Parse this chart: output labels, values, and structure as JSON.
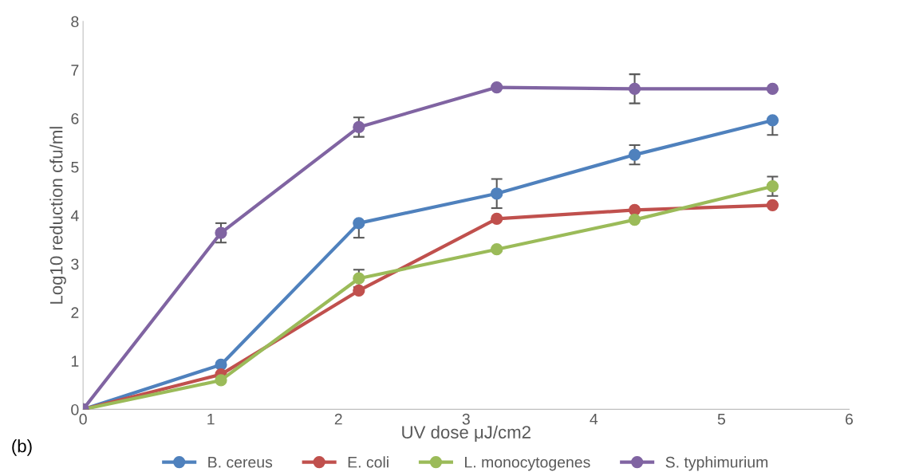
{
  "chart_data": {
    "type": "line",
    "xlabel": "UV dose μJ/cm2",
    "ylabel": "Log10 reduction cfu/ml",
    "x": [
      0,
      1.08,
      2.16,
      3.24,
      4.32,
      5.4
    ],
    "series": [
      {
        "name": "B. cereus",
        "color": "#4f81bd",
        "values": [
          0,
          0.92,
          3.84,
          4.45,
          5.25,
          5.96
        ],
        "errors": [
          null,
          null,
          [
            3.54,
            3.84
          ],
          [
            4.15,
            4.75
          ],
          0.2,
          [
            5.66,
            5.96
          ]
        ]
      },
      {
        "name": "E. coli",
        "color": "#c0504d",
        "values": [
          0,
          0.72,
          2.45,
          3.93,
          4.11,
          4.21
        ]
      },
      {
        "name": "L. monocytogenes",
        "color": "#9bbb59",
        "values": [
          0,
          0.6,
          2.7,
          3.3,
          3.91,
          4.6
        ],
        "errors": [
          null,
          null,
          0.18,
          null,
          null,
          0.2
        ]
      },
      {
        "name": "S. typhimurium",
        "color": "#8064a2",
        "values": [
          0,
          3.64,
          5.82,
          6.64,
          6.61,
          6.61
        ],
        "errors": [
          null,
          0.2,
          0.2,
          null,
          0.3,
          null
        ]
      }
    ],
    "xlim": [
      0,
      6
    ],
    "xticks": [
      0,
      1,
      2,
      3,
      4,
      5,
      6
    ],
    "ylim": [
      0,
      8
    ],
    "yticks": [
      0,
      1,
      2,
      3,
      4,
      5,
      6,
      7,
      8
    ],
    "grid": false,
    "legend": "bottom",
    "marker": "circle",
    "line_style": "solid",
    "annotations": [
      "(b)"
    ]
  }
}
